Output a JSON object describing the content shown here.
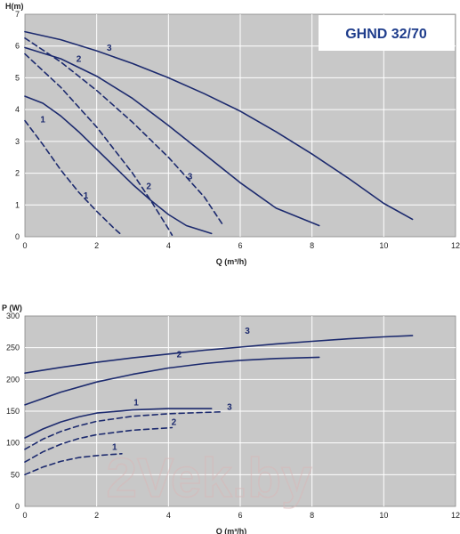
{
  "watermark": "2Vek.by",
  "colors": {
    "plot_bg": "#c8c8c8",
    "grid": "#ffffff",
    "curve": "#1c2a6e",
    "title": "#1f3d8c",
    "title_box": "#ffffff"
  },
  "chart_data": [
    {
      "type": "line",
      "title": "GHND 32/70",
      "xlabel": "Q (m³/h)",
      "ylabel": "H(m)",
      "xlim": [
        0,
        12
      ],
      "ylim": [
        0,
        7
      ],
      "xticks": [
        "0",
        "2",
        "4",
        "6",
        "8",
        "10",
        "12"
      ],
      "yticks": [
        "0",
        "1",
        "2",
        "3",
        "4",
        "5",
        "6",
        "7"
      ],
      "grid": true,
      "series": [
        {
          "name": "1",
          "style": "solid",
          "x": [
            0,
            0.5,
            1,
            1.5,
            2,
            2.5,
            3,
            3.5,
            4,
            4.5,
            5.2
          ],
          "y": [
            4.42,
            4.2,
            3.8,
            3.3,
            2.75,
            2.2,
            1.65,
            1.15,
            0.7,
            0.35,
            0.1
          ]
        },
        {
          "name": "2",
          "style": "solid",
          "x": [
            0,
            1,
            2,
            3,
            4,
            5,
            6,
            7,
            8.2
          ],
          "y": [
            5.95,
            5.6,
            5.05,
            4.35,
            3.5,
            2.6,
            1.7,
            0.9,
            0.35
          ]
        },
        {
          "name": "3",
          "style": "solid",
          "x": [
            0,
            1,
            2,
            3,
            4,
            5,
            6,
            7,
            8,
            9,
            10,
            10.8
          ],
          "y": [
            6.45,
            6.2,
            5.85,
            5.45,
            5.0,
            4.5,
            3.95,
            3.3,
            2.6,
            1.85,
            1.05,
            0.55
          ]
        },
        {
          "name": "1",
          "style": "dashed",
          "x": [
            0,
            0.5,
            1,
            1.5,
            2,
            2.5,
            2.7
          ],
          "y": [
            3.65,
            2.9,
            2.1,
            1.4,
            0.8,
            0.25,
            0.05
          ]
        },
        {
          "name": "2",
          "style": "dashed",
          "x": [
            0,
            1,
            2,
            3,
            3.5,
            4,
            4.1
          ],
          "y": [
            5.75,
            4.7,
            3.45,
            2.0,
            1.15,
            0.25,
            0.05
          ]
        },
        {
          "name": "3",
          "style": "dashed",
          "x": [
            0,
            1,
            2,
            3,
            4,
            5,
            5.5
          ],
          "y": [
            6.25,
            5.5,
            4.6,
            3.6,
            2.5,
            1.25,
            0.4
          ]
        }
      ],
      "annotations": [
        {
          "text": "1",
          "x": 0.5,
          "y": 3.6
        },
        {
          "text": "2",
          "x": 1.5,
          "y": 5.5
        },
        {
          "text": "3",
          "x": 2.35,
          "y": 5.85
        },
        {
          "text": "1",
          "x": 1.7,
          "y": 1.2
        },
        {
          "text": "2",
          "x": 3.45,
          "y": 1.5
        },
        {
          "text": "3",
          "x": 4.6,
          "y": 1.8
        }
      ]
    },
    {
      "type": "line",
      "title": "",
      "xlabel": "Q (m³/h)",
      "ylabel": "P (W)",
      "xlim": [
        0,
        12
      ],
      "ylim": [
        0,
        300
      ],
      "xticks": [
        "0",
        "2",
        "4",
        "6",
        "8",
        "10",
        "12"
      ],
      "yticks": [
        "0",
        "50",
        "100",
        "150",
        "200",
        "250",
        "300"
      ],
      "grid": true,
      "series": [
        {
          "name": "1",
          "style": "solid",
          "x": [
            0,
            0.5,
            1,
            1.5,
            2,
            3,
            4,
            5.2
          ],
          "y": [
            108,
            122,
            133,
            141,
            147,
            152,
            154,
            154
          ]
        },
        {
          "name": "2",
          "style": "solid",
          "x": [
            0,
            1,
            2,
            3,
            4,
            5,
            6,
            7,
            8.2
          ],
          "y": [
            160,
            180,
            196,
            208,
            218,
            225,
            230,
            233,
            235
          ]
        },
        {
          "name": "3",
          "style": "solid",
          "x": [
            0,
            1,
            2,
            3,
            4,
            5,
            6,
            7,
            8,
            9,
            10,
            10.8
          ],
          "y": [
            210,
            219,
            227,
            234,
            240,
            246,
            251,
            256,
            260,
            264,
            267,
            269
          ]
        },
        {
          "name": "1",
          "style": "dashed",
          "x": [
            0,
            0.5,
            1,
            1.5,
            2,
            2.7
          ],
          "y": [
            50,
            62,
            71,
            77,
            80,
            83
          ]
        },
        {
          "name": "2",
          "style": "dashed",
          "x": [
            0,
            0.5,
            1,
            1.5,
            2,
            3,
            4.1
          ],
          "y": [
            70,
            86,
            98,
            107,
            113,
            120,
            124
          ]
        },
        {
          "name": "3",
          "style": "dashed",
          "x": [
            0,
            0.5,
            1,
            1.5,
            2,
            3,
            4,
            5,
            5.5
          ],
          "y": [
            90,
            106,
            118,
            127,
            134,
            142,
            146,
            148,
            149
          ]
        }
      ],
      "annotations": [
        {
          "text": "3",
          "x": 6.2,
          "y": 272
        },
        {
          "text": "2",
          "x": 4.3,
          "y": 235
        },
        {
          "text": "1",
          "x": 3.1,
          "y": 159
        },
        {
          "text": "3",
          "x": 5.7,
          "y": 152
        },
        {
          "text": "2",
          "x": 4.15,
          "y": 128
        },
        {
          "text": "1",
          "x": 2.5,
          "y": 89
        }
      ]
    }
  ]
}
